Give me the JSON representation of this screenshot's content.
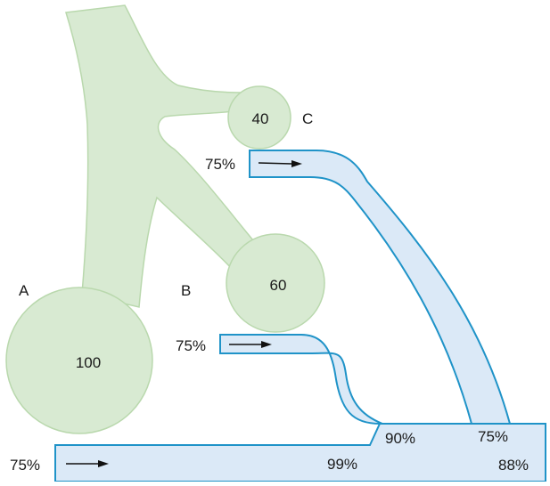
{
  "colors": {
    "artery_fill": "#d8ead2",
    "artery_stroke": "#b9d8ad",
    "vein_fill": "#dbe9f7",
    "vein_stroke": "#1f93c8",
    "text": "#1a1a1a"
  },
  "icons": {
    "flow_arrow": "right-arrow"
  },
  "vessels": {
    "A": {
      "label": "A",
      "value": "100"
    },
    "B": {
      "label": "B",
      "value": "60"
    },
    "C": {
      "label": "C",
      "value": "40"
    }
  },
  "saturations": {
    "bottom_inlet": "75%",
    "middle_inlet": "75%",
    "top_inlet": "75%",
    "junction_middle": "90%",
    "junction_top": "75%",
    "bottom_tube_mid": "99%",
    "outlet": "88%"
  }
}
